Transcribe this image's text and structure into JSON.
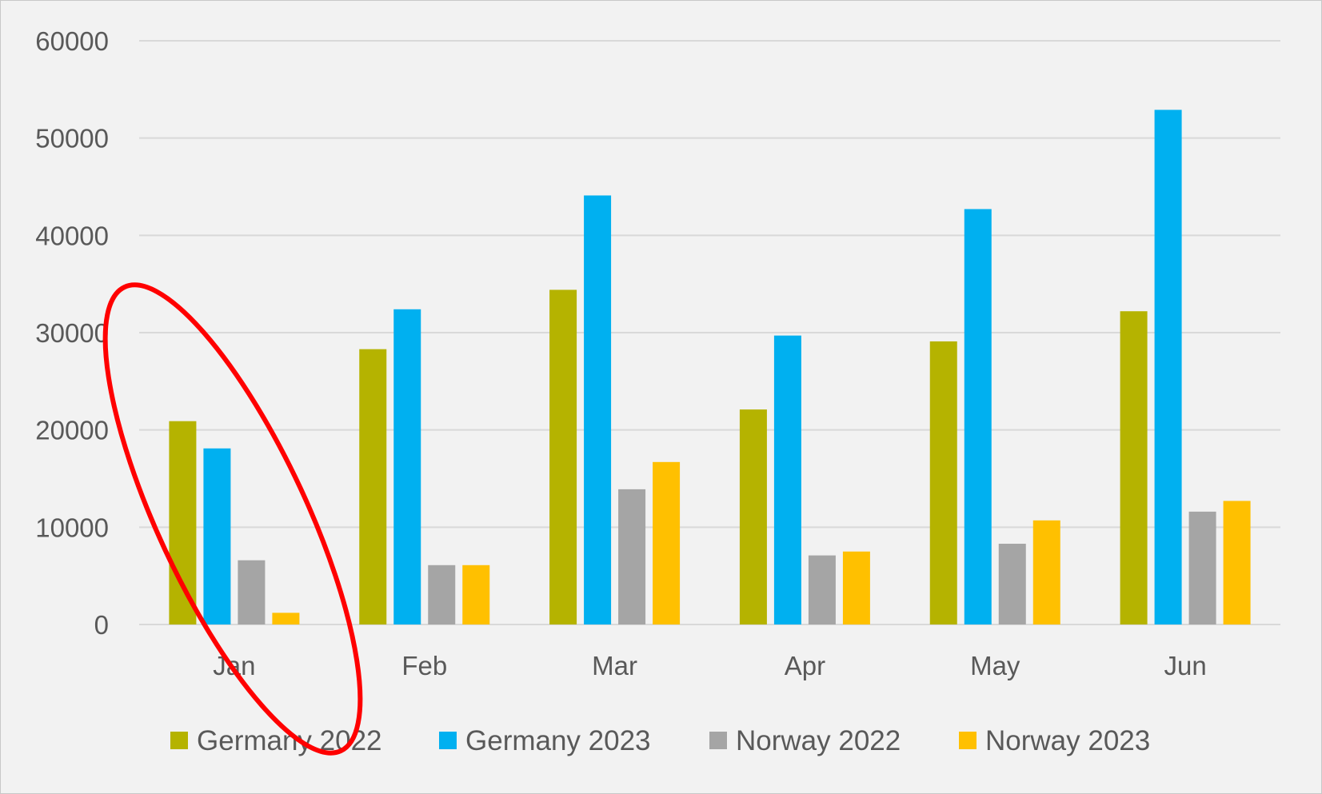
{
  "chart_data": {
    "type": "bar",
    "title": "",
    "xlabel": "",
    "ylabel": "",
    "categories": [
      "Jan",
      "Feb",
      "Mar",
      "Apr",
      "May",
      "Jun"
    ],
    "ylim": [
      0,
      60000
    ],
    "yticks": [
      "0",
      "10000",
      "20000",
      "30000",
      "40000",
      "50000",
      "60000"
    ],
    "grid": true,
    "legend_position": "bottom",
    "series": [
      {
        "name": "Germany 2022",
        "color": "#b5b300",
        "values": [
          20900,
          28300,
          34400,
          22100,
          29100,
          32200
        ]
      },
      {
        "name": "Germany 2023",
        "color": "#00b0f0",
        "values": [
          18100,
          32400,
          44100,
          29700,
          42700,
          52900
        ]
      },
      {
        "name": "Norway 2022",
        "color": "#a5a5a5",
        "values": [
          6600,
          6100,
          13900,
          7100,
          8300,
          11600
        ]
      },
      {
        "name": "Norway 2023",
        "color": "#ffc000",
        "values": [
          1200,
          6100,
          16700,
          7500,
          10700,
          12700
        ]
      }
    ],
    "annotation": {
      "type": "ellipse",
      "color": "#ff0000",
      "target_category": "Jan"
    }
  }
}
